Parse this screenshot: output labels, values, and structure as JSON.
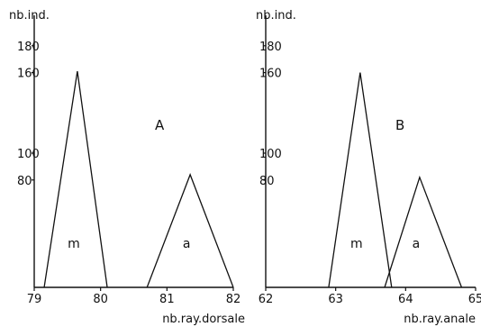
{
  "chart_data": [
    {
      "type": "line",
      "panel_label": "A",
      "xlabel": "nb.ray.dorsale",
      "ylabel": "nb.ind.",
      "xlim": [
        79,
        82
      ],
      "ylim": [
        0,
        200
      ],
      "x_ticks": [
        79,
        80,
        81,
        82
      ],
      "x_tick_labels": [
        "79",
        "80",
        "81",
        "82"
      ],
      "y_ticks": [
        80,
        100,
        160,
        180
      ],
      "y_tick_labels": [
        "80",
        "100",
        "160",
        "180"
      ],
      "grid": false,
      "series": [
        {
          "name": "m",
          "x": [
            79.15,
            79.65,
            80.1
          ],
          "y": [
            0,
            161,
            0
          ]
        },
        {
          "name": "a",
          "x": [
            80.7,
            81.35,
            82.0
          ],
          "y": [
            0,
            84,
            0
          ]
        }
      ]
    },
    {
      "type": "line",
      "panel_label": "B",
      "xlabel": "nb.ray.anale",
      "ylabel": "nb.ind.",
      "xlim": [
        62,
        65
      ],
      "ylim": [
        0,
        200
      ],
      "x_ticks": [
        62,
        63,
        64,
        65
      ],
      "x_tick_labels": [
        "62",
        "63",
        "64",
        "65"
      ],
      "y_ticks": [
        80,
        100,
        160,
        180
      ],
      "y_tick_labels": [
        "80",
        "100",
        "160",
        "180"
      ],
      "grid": false,
      "series": [
        {
          "name": "m",
          "x": [
            62.9,
            63.35,
            63.8
          ],
          "y": [
            0,
            160,
            0
          ]
        },
        {
          "name": "a",
          "x": [
            63.7,
            64.2,
            64.8
          ],
          "y": [
            0,
            82,
            0
          ]
        }
      ]
    }
  ]
}
